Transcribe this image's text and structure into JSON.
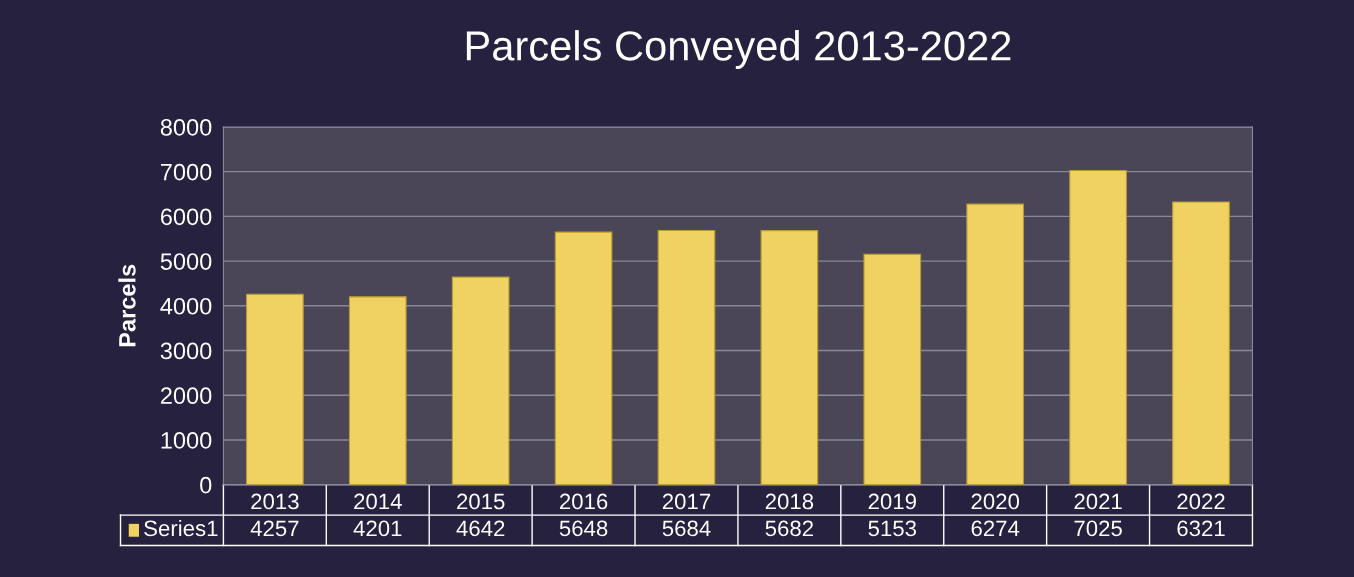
{
  "chart_data": {
    "type": "bar",
    "title": "Parcels Conveyed 2013-2022",
    "ylabel": "Parcels",
    "categories": [
      "2013",
      "2014",
      "2015",
      "2016",
      "2017",
      "2018",
      "2019",
      "2020",
      "2021",
      "2022"
    ],
    "series": [
      {
        "name": "Series1",
        "color": "#f0d262",
        "values": [
          4257,
          4201,
          4642,
          5648,
          5684,
          5682,
          5153,
          6274,
          7025,
          6321
        ]
      }
    ],
    "ylim": [
      0,
      8000
    ],
    "yticks": [
      0,
      1000,
      2000,
      3000,
      4000,
      5000,
      6000,
      7000,
      8000
    ],
    "grid": "y",
    "data_labels": true
  }
}
